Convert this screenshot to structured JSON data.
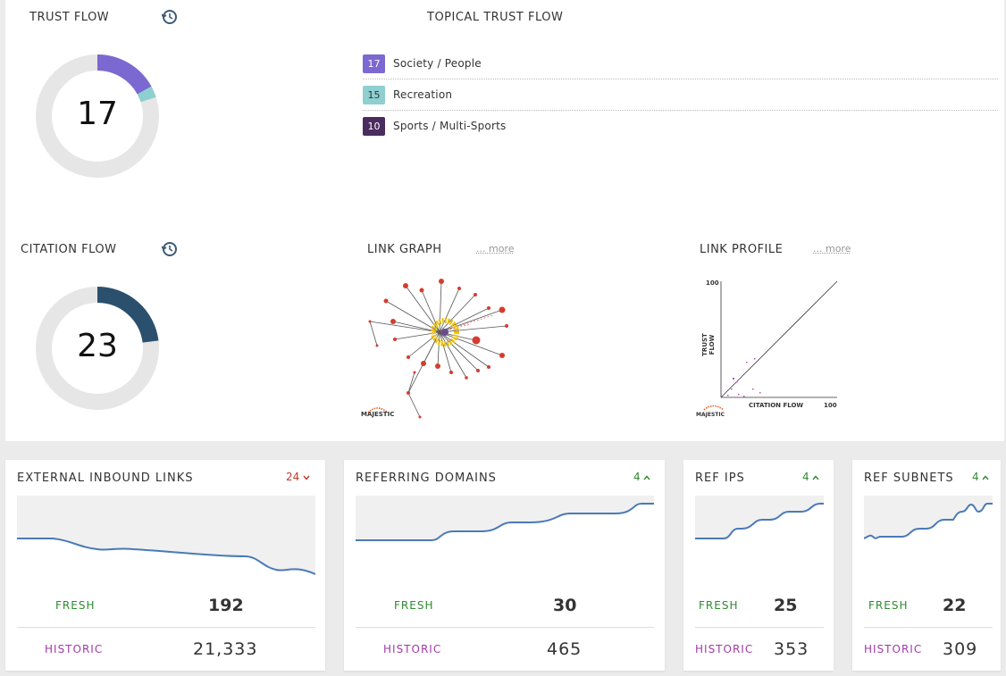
{
  "trust_flow": {
    "title": "TRUST FLOW",
    "value": "17",
    "history_icon": "history-icon",
    "colors": {
      "segment1": "#7b68d0",
      "segment2": "#8ecfd0",
      "track": "#e6e6e6"
    }
  },
  "topical_trust_flow": {
    "title": "TOPICAL TRUST FLOW",
    "items": [
      {
        "score": "17",
        "label": "Society / People",
        "color": "#7b68d0"
      },
      {
        "score": "15",
        "label": "Recreation",
        "color": "#8ecfd0"
      },
      {
        "score": "10",
        "label": "Sports / Multi-Sports",
        "color": "#4a2d5e"
      }
    ]
  },
  "citation_flow": {
    "title": "CITATION FLOW",
    "value": "23",
    "history_icon": "history-icon",
    "colors": {
      "segment": "#2b506e",
      "track": "#e6e6e6"
    }
  },
  "link_graph": {
    "title": "LINK GRAPH",
    "more": "... more",
    "logo_text": "MAJESTIC"
  },
  "link_profile": {
    "title": "LINK PROFILE",
    "more": "... more",
    "chart": {
      "y_label": "TRUST FLOW",
      "x_label": "CITATION FLOW",
      "y_max_label": "100",
      "x_max_label": "100"
    },
    "logo_text": "MAJESTIC"
  },
  "cards": [
    {
      "title": "EXTERNAL INBOUND LINKS",
      "change": "24",
      "change_dir": "down",
      "change_icon": "chevron-down-icon",
      "change_color": "#c0392b",
      "fresh_label": "FRESH",
      "fresh": "192",
      "historic_label": "HISTORIC",
      "historic": "21,333"
    },
    {
      "title": "REFERRING DOMAINS",
      "change": "4",
      "change_dir": "up",
      "change_icon": "chevron-up-icon",
      "change_color": "#2e8b2e",
      "fresh_label": "FRESH",
      "fresh": "30",
      "historic_label": "HISTORIC",
      "historic": "465"
    },
    {
      "title": "REF IPS",
      "change": "4",
      "change_dir": "up",
      "change_icon": "chevron-up-icon",
      "change_color": "#2e8b2e",
      "fresh_label": "FRESH",
      "fresh": "25",
      "historic_label": "HISTORIC",
      "historic": "353"
    },
    {
      "title": "REF SUBNETS",
      "change": "4",
      "change_dir": "up",
      "change_icon": "chevron-up-icon",
      "change_color": "#2e8b2e",
      "fresh_label": "FRESH",
      "fresh": "22",
      "historic_label": "HISTORIC",
      "historic": "309"
    }
  ]
}
